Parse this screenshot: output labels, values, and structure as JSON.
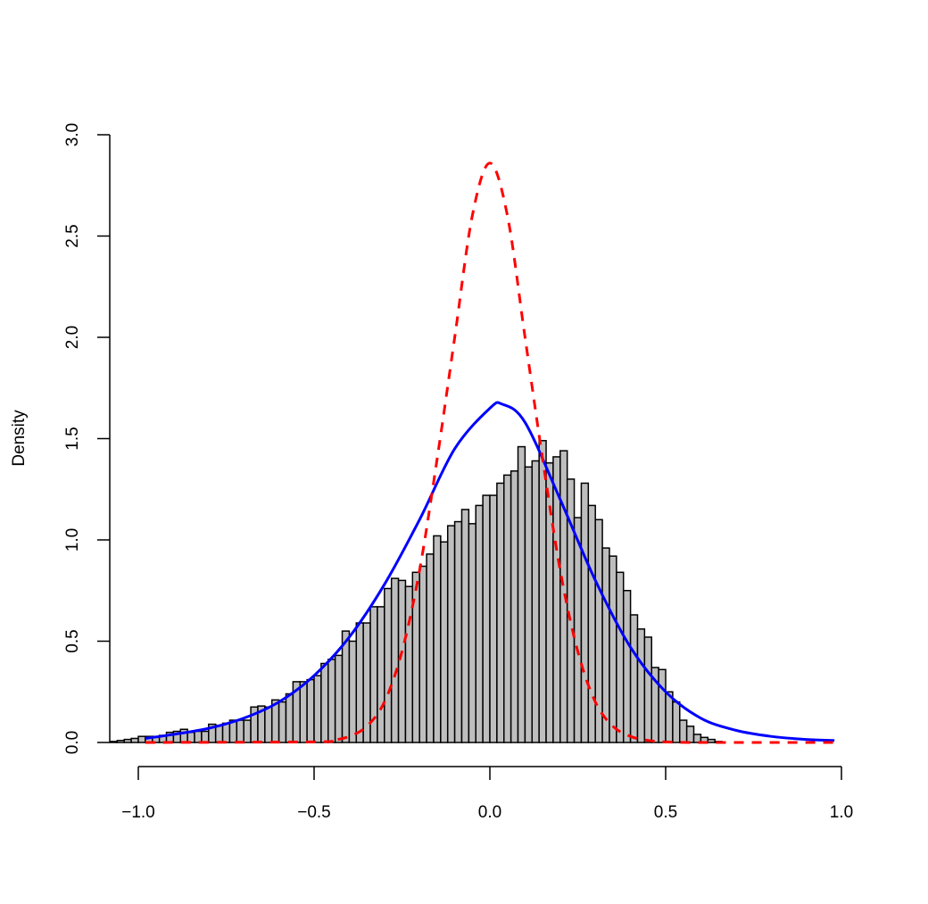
{
  "chart_data": {
    "type": "bar",
    "subtype": "histogram_with_density_curves",
    "title": "",
    "xlabel": "",
    "ylabel": "Density",
    "xlim": [
      -1.0,
      1.0
    ],
    "ylim": [
      0.0,
      3.0
    ],
    "grid": false,
    "legend": null,
    "x_ticks": [
      "−1.0",
      "−0.5",
      "0.0",
      "0.5",
      "1.0"
    ],
    "x_tick_values": [
      -1.0,
      -0.5,
      0.0,
      0.5,
      1.0
    ],
    "y_ticks": [
      "0.0",
      "0.5",
      "1.0",
      "1.5",
      "2.0",
      "2.5",
      "3.0"
    ],
    "y_tick_values": [
      0.0,
      0.5,
      1.0,
      1.5,
      2.0,
      2.5,
      3.0
    ],
    "histogram": {
      "bin_width": 0.02,
      "fill": "#bebebe",
      "stroke": "#000000",
      "bin_starts": [
        -1.08,
        -1.06,
        -1.04,
        -1.02,
        -1.0,
        -0.98,
        -0.96,
        -0.94,
        -0.92,
        -0.9,
        -0.88,
        -0.86,
        -0.84,
        -0.82,
        -0.8,
        -0.78,
        -0.76,
        -0.74,
        -0.72,
        -0.7,
        -0.68,
        -0.66,
        -0.64,
        -0.62,
        -0.6,
        -0.58,
        -0.56,
        -0.54,
        -0.52,
        -0.5,
        -0.48,
        -0.46,
        -0.44,
        -0.42,
        -0.4,
        -0.38,
        -0.36,
        -0.34,
        -0.32,
        -0.3,
        -0.28,
        -0.26,
        -0.24,
        -0.22,
        -0.2,
        -0.18,
        -0.16,
        -0.14,
        -0.12,
        -0.1,
        -0.08,
        -0.06,
        -0.04,
        -0.02,
        0.0,
        0.02,
        0.04,
        0.06,
        0.08,
        0.1,
        0.12,
        0.14,
        0.16,
        0.18,
        0.2,
        0.22,
        0.24,
        0.26,
        0.28,
        0.3,
        0.32,
        0.34,
        0.36,
        0.38,
        0.4,
        0.42,
        0.44,
        0.46,
        0.48,
        0.5,
        0.52,
        0.54,
        0.56,
        0.58,
        0.6,
        0.62,
        0.64
      ],
      "densities": [
        0.005,
        0.01,
        0.015,
        0.02,
        0.03,
        0.03,
        0.03,
        0.035,
        0.05,
        0.055,
        0.065,
        0.05,
        0.055,
        0.055,
        0.09,
        0.085,
        0.095,
        0.11,
        0.11,
        0.11,
        0.175,
        0.18,
        0.175,
        0.21,
        0.2,
        0.24,
        0.3,
        0.3,
        0.31,
        0.33,
        0.39,
        0.41,
        0.43,
        0.55,
        0.5,
        0.59,
        0.59,
        0.67,
        0.67,
        0.76,
        0.81,
        0.8,
        0.77,
        0.84,
        0.87,
        0.93,
        1.02,
        0.99,
        1.07,
        1.09,
        1.15,
        1.08,
        1.17,
        1.22,
        1.22,
        1.28,
        1.32,
        1.34,
        1.46,
        1.36,
        1.39,
        1.49,
        1.38,
        1.41,
        1.44,
        1.3,
        1.11,
        1.28,
        1.17,
        1.1,
        0.96,
        0.92,
        0.84,
        0.75,
        0.63,
        0.56,
        0.52,
        0.37,
        0.36,
        0.25,
        0.2,
        0.11,
        0.08,
        0.04,
        0.025,
        0.015,
        0.005
      ]
    },
    "series": [
      {
        "name": "blue solid density",
        "kind": "line",
        "color": "#0000ff",
        "line_style": "solid",
        "line_width": 3,
        "peak_x": 0.035,
        "peak_y": 1.67,
        "x": [
          -0.98,
          -0.9,
          -0.8,
          -0.7,
          -0.6,
          -0.5,
          -0.4,
          -0.3,
          -0.2,
          -0.1,
          0.0,
          0.035,
          0.1,
          0.2,
          0.3,
          0.4,
          0.5,
          0.6,
          0.7,
          0.8,
          0.9,
          0.98
        ],
        "y": [
          0.02,
          0.04,
          0.07,
          0.12,
          0.2,
          0.33,
          0.52,
          0.78,
          1.1,
          1.45,
          1.65,
          1.67,
          1.58,
          1.2,
          0.8,
          0.47,
          0.25,
          0.12,
          0.06,
          0.03,
          0.015,
          0.01
        ]
      },
      {
        "name": "red dashed density",
        "kind": "line",
        "color": "#ff0000",
        "line_style": "dashed",
        "line_width": 3,
        "peak_x": 0.0,
        "peak_y": 2.86,
        "x": [
          -0.98,
          -0.5,
          -0.45,
          -0.4,
          -0.35,
          -0.3,
          -0.25,
          -0.2,
          -0.15,
          -0.1,
          -0.05,
          0.0,
          0.05,
          0.1,
          0.15,
          0.2,
          0.25,
          0.3,
          0.35,
          0.4,
          0.45,
          0.5,
          0.6,
          0.98
        ],
        "y": [
          0.0,
          0.003,
          0.01,
          0.03,
          0.08,
          0.2,
          0.45,
          0.85,
          1.4,
          2.0,
          2.6,
          2.86,
          2.6,
          2.0,
          1.4,
          0.85,
          0.45,
          0.2,
          0.08,
          0.03,
          0.01,
          0.003,
          0.0,
          0.0
        ]
      }
    ]
  },
  "axes": {
    "y_title": "Density"
  }
}
